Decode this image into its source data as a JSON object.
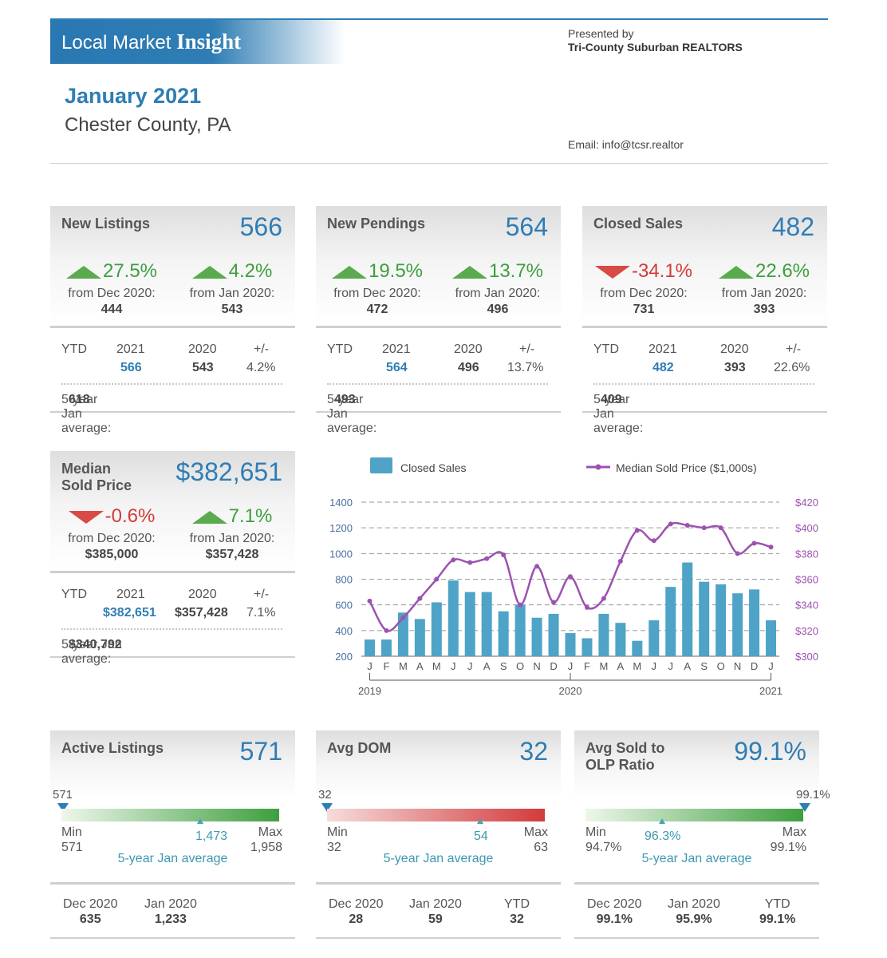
{
  "header": {
    "brand_plain": "Local Market",
    "brand_bold": "Insight",
    "presented_by": "Presented by",
    "organization": "Tri-County Suburban REALTORS",
    "email": "Email: info@tcsr.realtor",
    "month": "January 2021",
    "county": "Chester County, PA"
  },
  "cards": {
    "new_listings": {
      "title": "New Listings",
      "value": "566",
      "mom": {
        "pct": "27.5%",
        "direction": "up",
        "label": "from Dec 2020:",
        "prior": "444"
      },
      "yoy": {
        "pct": "4.2%",
        "direction": "up",
        "label": "from Jan 2020:",
        "prior": "543"
      },
      "ytd": {
        "label": "YTD",
        "y_cur": "2021",
        "y_prev": "2020",
        "chg_label": "+/-",
        "cur": "566",
        "prev": "543",
        "chg": "4.2%"
      },
      "avg_label": "5-year Jan average:",
      "avg": "618"
    },
    "new_pendings": {
      "title": "New Pendings",
      "value": "564",
      "mom": {
        "pct": "19.5%",
        "direction": "up",
        "label": "from Dec 2020:",
        "prior": "472"
      },
      "yoy": {
        "pct": "13.7%",
        "direction": "up",
        "label": "from Jan 2020:",
        "prior": "496"
      },
      "ytd": {
        "label": "YTD",
        "y_cur": "2021",
        "y_prev": "2020",
        "chg_label": "+/-",
        "cur": "564",
        "prev": "496",
        "chg": "13.7%"
      },
      "avg_label": "5-year Jan average:",
      "avg": "493"
    },
    "closed_sales": {
      "title": "Closed Sales",
      "value": "482",
      "mom": {
        "pct": "-34.1%",
        "direction": "down",
        "label": "from Dec 2020:",
        "prior": "731"
      },
      "yoy": {
        "pct": "22.6%",
        "direction": "up",
        "label": "from Jan 2020:",
        "prior": "393"
      },
      "ytd": {
        "label": "YTD",
        "y_cur": "2021",
        "y_prev": "2020",
        "chg_label": "+/-",
        "cur": "482",
        "prev": "393",
        "chg": "22.6%"
      },
      "avg_label": "5-year Jan average:",
      "avg": "409"
    },
    "median_price": {
      "title_line1": "Median",
      "title_line2": "Sold Price",
      "value": "$382,651",
      "mom": {
        "pct": "-0.6%",
        "direction": "down",
        "label": "from Dec 2020:",
        "prior": "$385,000"
      },
      "yoy": {
        "pct": "7.1%",
        "direction": "up",
        "label": "from Jan 2020:",
        "prior": "$357,428"
      },
      "ytd": {
        "label": "YTD",
        "y_cur": "2021",
        "y_prev": "2020",
        "chg_label": "+/-",
        "cur": "$382,651",
        "prev": "$357,428",
        "chg": "7.1%"
      },
      "avg_label": "5-year Jan average:",
      "avg": "$340,792"
    }
  },
  "gauges": {
    "active": {
      "title": "Active Listings",
      "value": "571",
      "current": "571",
      "min_label": "Min",
      "min": "571",
      "max_label": "Max",
      "max": "1,958",
      "avg": "1,473",
      "avg_label": "5-year Jan average",
      "footer": [
        {
          "label": "Dec 2020",
          "value": "635"
        },
        {
          "label": "Jan 2020",
          "value": "1,233"
        }
      ]
    },
    "dom": {
      "title": "Avg DOM",
      "value": "32",
      "current": "32",
      "min_label": "Min",
      "min": "32",
      "max_label": "Max",
      "max": "63",
      "avg": "54",
      "avg_label": "5-year Jan average",
      "footer": [
        {
          "label": "Dec 2020",
          "value": "28"
        },
        {
          "label": "Jan 2020",
          "value": "59"
        },
        {
          "label": "YTD",
          "value": "32"
        }
      ]
    },
    "ratio": {
      "title_line1": "Avg Sold to",
      "title_line2": "OLP Ratio",
      "value": "99.1%",
      "current": "99.1%",
      "min_label": "Min",
      "min": "94.7%",
      "max_label": "Max",
      "max": "99.1%",
      "avg": "96.3%",
      "avg_label": "5-year Jan average",
      "footer": [
        {
          "label": "Dec 2020",
          "value": "99.1%"
        },
        {
          "label": "Jan 2020",
          "value": "95.9%"
        },
        {
          "label": "YTD",
          "value": "99.1%"
        }
      ]
    }
  },
  "colors": {
    "accent": "#2f7db4",
    "up": "#3e9e3e",
    "down": "#d23a3a",
    "bars": "#4ea3c7",
    "line": "#9c52b0"
  },
  "chart_data": {
    "type": "bar",
    "categories": [
      "J",
      "F",
      "M",
      "A",
      "M",
      "J",
      "J",
      "A",
      "S",
      "O",
      "N",
      "D",
      "J",
      "F",
      "M",
      "A",
      "M",
      "J",
      "J",
      "A",
      "S",
      "O",
      "N",
      "D",
      "J"
    ],
    "year_labels": [
      "2019",
      "2020",
      "2021"
    ],
    "series": [
      {
        "name": "Closed Sales",
        "type": "bar",
        "axis": "left",
        "values": [
          330,
          330,
          540,
          490,
          620,
          790,
          700,
          700,
          550,
          600,
          500,
          530,
          380,
          340,
          530,
          460,
          320,
          480,
          740,
          930,
          780,
          760,
          690,
          720,
          480
        ]
      },
      {
        "name": "Median Sold Price ($1,000s)",
        "type": "line",
        "axis": "right",
        "values": [
          343,
          320,
          330,
          345,
          360,
          375,
          373,
          376,
          379,
          340,
          370,
          342,
          362,
          338,
          345,
          374,
          398,
          390,
          403,
          402,
          400,
          400,
          380,
          388,
          385
        ]
      }
    ],
    "y_left": {
      "min": 200,
      "max": 1400,
      "ticks": [
        "1400",
        "1200",
        "1000",
        "800",
        "600",
        "400",
        "200"
      ]
    },
    "y_right": {
      "min": 300,
      "max": 420,
      "ticks": [
        "$420",
        "$400",
        "$380",
        "$360",
        "$340",
        "$320",
        "$300"
      ]
    },
    "grid": true,
    "legend": "top"
  }
}
